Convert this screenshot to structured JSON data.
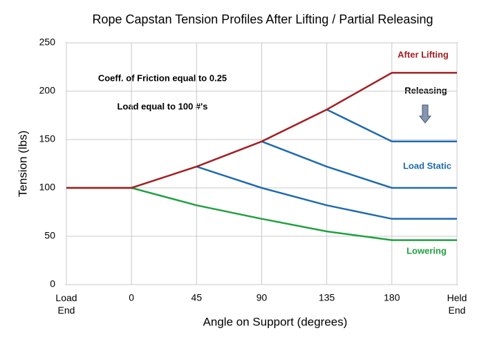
{
  "chart_data": {
    "type": "line",
    "title": "Rope Capstan Tension Profiles After Lifting / Partial Releasing",
    "x_label": "Angle on Support (degrees)",
    "y_label": "Tension (lbs)",
    "categories": [
      "Load End",
      "0",
      "45",
      "90",
      "135",
      "180",
      "Held End"
    ],
    "ylim": [
      0,
      250
    ],
    "yticks": [
      0,
      50,
      100,
      150,
      200,
      250
    ],
    "grid": true,
    "annotations": [
      "Coeff. of Friction equal to 0.25",
      "Load equal to 100 #'s",
      "Releasing"
    ],
    "series": [
      {
        "name": "Lowering",
        "color": "#1fa040",
        "values": [
          100,
          100,
          82,
          68,
          55,
          46,
          46
        ]
      },
      {
        "name": "Load Static",
        "color": "#1f6ab0",
        "values": [
          null,
          null,
          122,
          100,
          82,
          68,
          68
        ]
      },
      {
        "color": "#1f6ab0",
        "values": [
          null,
          null,
          null,
          148,
          122,
          100,
          100
        ]
      },
      {
        "color": "#1f6ab0",
        "values": [
          null,
          null,
          null,
          null,
          181,
          148,
          148
        ]
      },
      {
        "name": "After Lifting",
        "color": "#a31e22",
        "values": [
          100,
          100,
          122,
          148,
          181,
          219,
          219
        ]
      }
    ]
  }
}
